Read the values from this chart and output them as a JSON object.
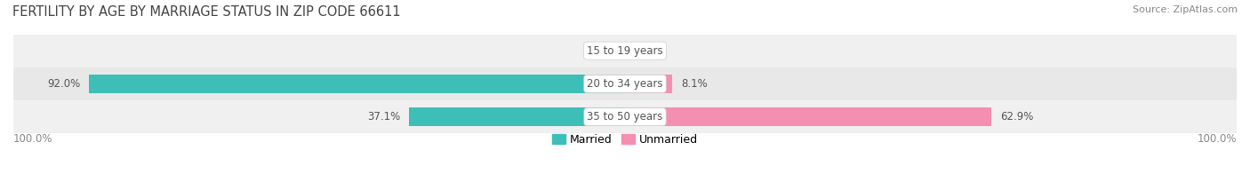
{
  "title": "FERTILITY BY AGE BY MARRIAGE STATUS IN ZIP CODE 66611",
  "source": "Source: ZipAtlas.com",
  "rows": [
    {
      "label": "15 to 19 years",
      "married": 0.0,
      "unmarried": 0.0
    },
    {
      "label": "20 to 34 years",
      "married": 92.0,
      "unmarried": 8.1
    },
    {
      "label": "35 to 50 years",
      "married": 37.1,
      "unmarried": 62.9
    }
  ],
  "married_color": "#3dbfb8",
  "unmarried_color": "#f48fb1",
  "row_bg_colors": [
    "#f0f0f0",
    "#e8e8e8",
    "#f0f0f0"
  ],
  "bar_height": 0.58,
  "title_fontsize": 10.5,
  "label_fontsize": 8.5,
  "tick_fontsize": 8.5,
  "legend_fontsize": 9,
  "source_fontsize": 8,
  "left_axis_label": "100.0%",
  "right_axis_label": "100.0%",
  "fig_width": 14.06,
  "fig_height": 1.96,
  "dpi": 100
}
